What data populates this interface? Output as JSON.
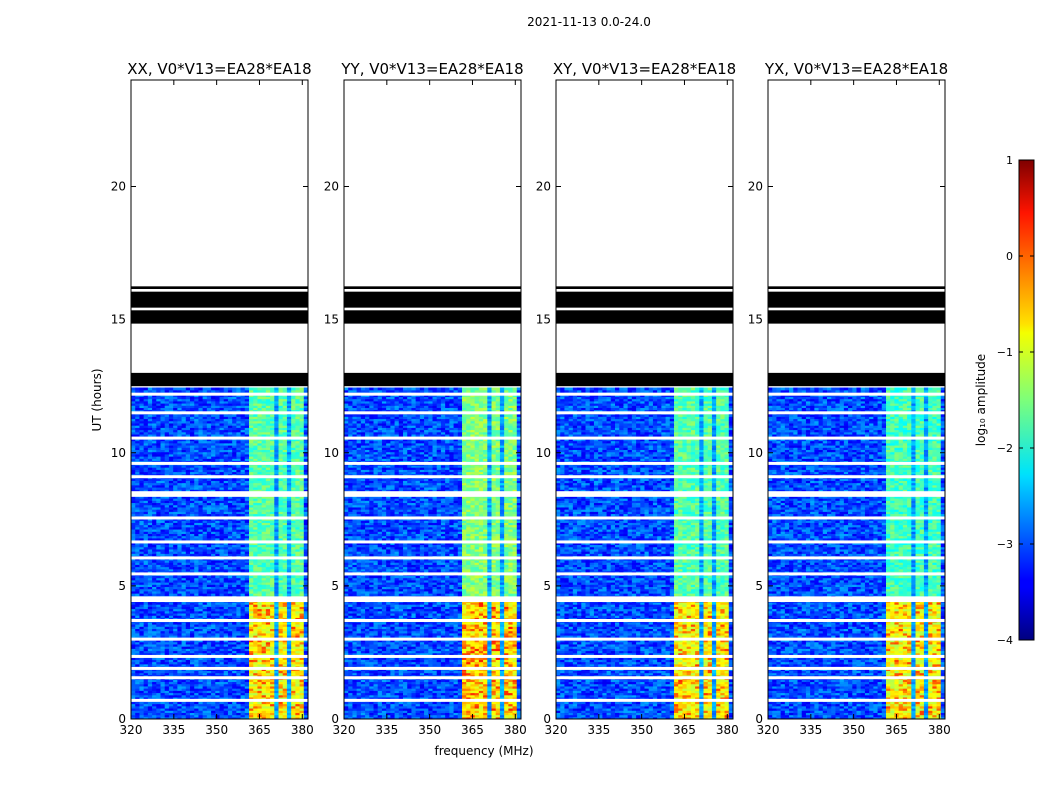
{
  "figure": {
    "suptitle": "2021-11-13 0.0-24.0",
    "xlabel": "frequency (MHz)",
    "ylabel": "UT (hours)"
  },
  "colorbar": {
    "label": "log₁₀ amplitude",
    "ticks": [
      1,
      0,
      -1,
      -2,
      -3,
      -4
    ],
    "tick_labels": [
      "1",
      "0",
      "−1",
      "−2",
      "−3",
      "−4"
    ],
    "range": [
      -4,
      1
    ],
    "colormap": "jet"
  },
  "chart_data": {
    "type": "heatmap",
    "description_axis": "waterfall spectrogram, frequency vs UT",
    "xlim": [
      320,
      382
    ],
    "ylim": [
      0,
      24
    ],
    "xticks": [
      320,
      335,
      350,
      365,
      380
    ],
    "yticks": [
      0,
      5,
      10,
      15,
      20
    ],
    "yticklabels": [
      "0",
      "5",
      "10",
      "15",
      "20"
    ],
    "xticklabels": [
      "320",
      "335",
      "350",
      "365",
      "380"
    ],
    "data_end_hour": 12.45,
    "flagged_blocks_hours": [
      [
        12.5,
        13.0
      ],
      [
        14.85,
        15.35
      ],
      [
        15.45,
        16.05
      ],
      [
        16.15,
        16.25
      ]
    ],
    "gaps_hours": [
      4.45,
      4.55,
      7.55,
      8.4,
      8.5,
      9.6,
      10.55,
      11.5,
      12.2,
      0.7,
      1.55,
      1.9,
      2.35,
      3.0,
      3.7,
      5.45,
      6.05,
      6.65,
      9.1
    ],
    "rfi_band_mhz": [
      361,
      380
    ],
    "rfi_subbands_mhz": [
      [
        361,
        366
      ],
      [
        366.5,
        370.5
      ],
      [
        371,
        374.5
      ],
      [
        375.5,
        380
      ]
    ],
    "background_log10_amplitude": -3.0,
    "panels": [
      {
        "title": "XX, V0*V13=EA28*EA18",
        "band_strength": 1.0
      },
      {
        "title": "YY, V0*V13=EA28*EA18",
        "band_strength": 1.15
      },
      {
        "title": "XY, V0*V13=EA28*EA18",
        "band_strength": 1.0
      },
      {
        "title": "YX, V0*V13=EA28*EA18",
        "band_strength": 0.95
      }
    ]
  }
}
